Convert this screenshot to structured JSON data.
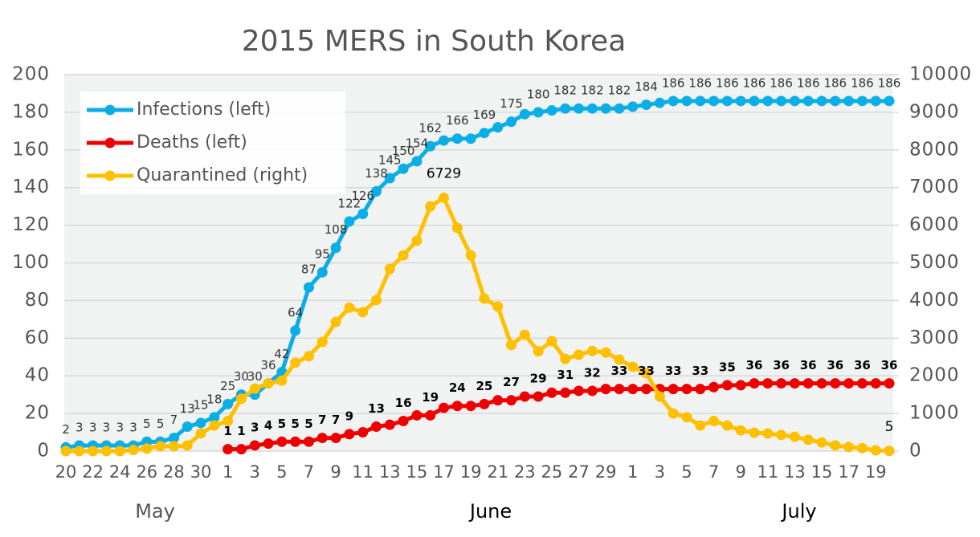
{
  "chart_data": {
    "type": "line",
    "title": "2015 MERS in South Korea",
    "categories": [
      "20",
      null,
      "22",
      null,
      "24",
      null,
      "26",
      null,
      "28",
      null,
      "30",
      null,
      "1",
      null,
      "3",
      null,
      "5",
      null,
      "7",
      null,
      "9",
      null,
      "11",
      null,
      "13",
      null,
      "15",
      null,
      "17",
      null,
      "19",
      null,
      "21",
      null,
      "23",
      null,
      "25",
      null,
      "27",
      null,
      "29",
      null,
      "1",
      null,
      "3",
      null,
      "5",
      null,
      "7",
      null,
      "9",
      null,
      "11",
      null,
      "13",
      null,
      "15",
      null,
      "17",
      null,
      "19",
      null
    ],
    "months": [
      "May",
      "June",
      "July"
    ],
    "ylim": [
      0,
      200
    ],
    "yticks": [
      0,
      20,
      40,
      60,
      80,
      100,
      120,
      140,
      160,
      180,
      200
    ],
    "y2lim": [
      0,
      10000
    ],
    "y2ticks": [
      0,
      1000,
      2000,
      3000,
      4000,
      5000,
      6000,
      7000,
      8000,
      9000,
      10000
    ],
    "grid": true,
    "legend": "upper left",
    "series": [
      {
        "name": "Infections (left)",
        "color": "#0aaee6",
        "axis": "y",
        "values": [
          2,
          3,
          3,
          3,
          3,
          3,
          5,
          5,
          7,
          13,
          15,
          18,
          25,
          30,
          30,
          36,
          42,
          64,
          87,
          95,
          108,
          122,
          126,
          138,
          145,
          150,
          154,
          162,
          165,
          166,
          166,
          169,
          172,
          175,
          179,
          180,
          181,
          182,
          182,
          182,
          182,
          182,
          183,
          184,
          185,
          186,
          186,
          186,
          186,
          186,
          186,
          186,
          186,
          186,
          186,
          186,
          186,
          186,
          186,
          186,
          186,
          186
        ],
        "value_labels": [
          "2",
          "3",
          "3",
          "3",
          "3",
          "3",
          "5",
          "5",
          "7",
          "13",
          "15",
          "18",
          "25",
          "30",
          "30",
          "36",
          "42",
          "64",
          "87",
          "95",
          "108",
          "122",
          "126",
          "138",
          "145",
          "150",
          "154",
          "162",
          null,
          "166",
          null,
          "169",
          null,
          "175",
          null,
          "180",
          null,
          "182",
          null,
          "182",
          null,
          "182",
          null,
          "184",
          null,
          "186",
          null,
          "186",
          null,
          "186",
          null,
          "186",
          null,
          "186",
          null,
          "186",
          null,
          "186",
          null,
          "186",
          null,
          "186"
        ]
      },
      {
        "name": "Deaths (left)",
        "color": "#ee0000",
        "axis": "y",
        "values": [
          null,
          null,
          null,
          null,
          null,
          null,
          null,
          null,
          null,
          null,
          null,
          null,
          1,
          1,
          3,
          4,
          5,
          5,
          5,
          7,
          7,
          9,
          10,
          13,
          14,
          16,
          19,
          19,
          23,
          24,
          24,
          25,
          27,
          27,
          29,
          29,
          31,
          31,
          32,
          32,
          33,
          33,
          33,
          33,
          33,
          33,
          33,
          33,
          34,
          35,
          35,
          36,
          36,
          36,
          36,
          36,
          36,
          36,
          36,
          36,
          36,
          36
        ],
        "value_labels": [
          null,
          null,
          null,
          null,
          null,
          null,
          null,
          null,
          null,
          null,
          null,
          null,
          "1",
          "1",
          "3",
          "4",
          "5",
          "5",
          "5",
          "7",
          "7",
          "9",
          null,
          "13",
          null,
          "16",
          null,
          "19",
          null,
          "24",
          null,
          "25",
          null,
          "27",
          null,
          "29",
          null,
          "31",
          null,
          "32",
          null,
          "33",
          null,
          "33",
          null,
          "33",
          null,
          "33",
          null,
          "35",
          null,
          "36",
          null,
          "36",
          null,
          "36",
          null,
          "36",
          null,
          "36",
          null,
          "36"
        ]
      },
      {
        "name": "Quarantined (right)",
        "color": "#ffc000",
        "axis": "y2",
        "values": [
          0,
          0,
          0,
          0,
          0,
          30,
          70,
          130,
          130,
          150,
          470,
          680,
          800,
          1390,
          1660,
          1800,
          1870,
          2350,
          2520,
          2900,
          3430,
          3810,
          3690,
          4010,
          4840,
          5200,
          5590,
          6500,
          6729,
          5930,
          5200,
          4050,
          3840,
          2820,
          3090,
          2650,
          2920,
          2450,
          2560,
          2660,
          2620,
          2430,
          2240,
          2070,
          1450,
          1000,
          900,
          680,
          800,
          680,
          550,
          490,
          470,
          430,
          380,
          300,
          230,
          150,
          110,
          80,
          20,
          5
        ],
        "value_labels": [
          null,
          null,
          null,
          null,
          null,
          null,
          null,
          null,
          null,
          null,
          null,
          null,
          null,
          null,
          null,
          null,
          null,
          null,
          null,
          null,
          null,
          null,
          null,
          null,
          null,
          null,
          null,
          null,
          "6729",
          null,
          null,
          null,
          null,
          null,
          null,
          null,
          null,
          null,
          null,
          null,
          null,
          null,
          null,
          null,
          null,
          null,
          null,
          null,
          null,
          null,
          null,
          null,
          null,
          null,
          null,
          null,
          null,
          null,
          null,
          null,
          null,
          "5"
        ]
      }
    ]
  }
}
